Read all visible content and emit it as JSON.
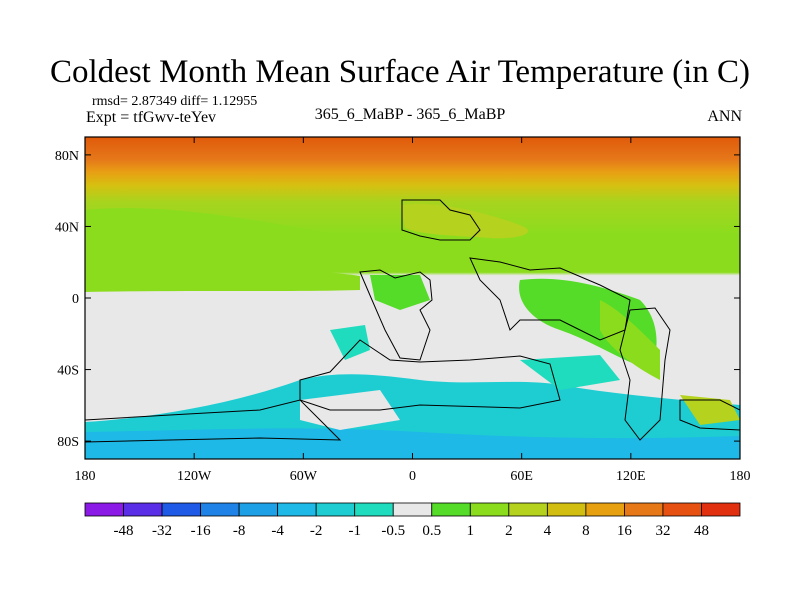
{
  "chart_data": {
    "type": "heatmap",
    "title": "Coldest Month Mean Surface Air Temperature (in C)",
    "stats_text": "rmsd= 2.87349 diff= 1.12955",
    "experiment_text": "Expt = tfGwv-teYev",
    "subtitle": "365_6_MaBP - 365_6_MaBP",
    "season": "ANN",
    "x_ticks": [
      "180",
      "120W",
      "60W",
      "0",
      "60E",
      "120E",
      "180"
    ],
    "x_tick_values": [
      -180,
      -120,
      -60,
      0,
      60,
      120,
      180
    ],
    "y_ticks": [
      "80N",
      "40N",
      "0",
      "40S",
      "80S"
    ],
    "y_tick_values": [
      80,
      40,
      0,
      -40,
      -80
    ],
    "xlim": [
      -180,
      180
    ],
    "ylim": [
      -90,
      90
    ],
    "colorbar_labels": [
      "-48",
      "-32",
      "-16",
      "-8",
      "-4",
      "-2",
      "-1",
      "-0.5",
      "0.5",
      "1",
      "2",
      "4",
      "8",
      "16",
      "32",
      "48"
    ],
    "colorbar_colors": [
      "#8c1ae6",
      "#5a2ee6",
      "#1e5ae6",
      "#1e82e6",
      "#1ea0e6",
      "#1eb9e6",
      "#1ecdd2",
      "#20dcbe",
      "#e8e8e8",
      "#55dc28",
      "#8cdc1e",
      "#b4d21e",
      "#d2be10",
      "#e6a010",
      "#e67818",
      "#e65010",
      "#e03010"
    ]
  }
}
